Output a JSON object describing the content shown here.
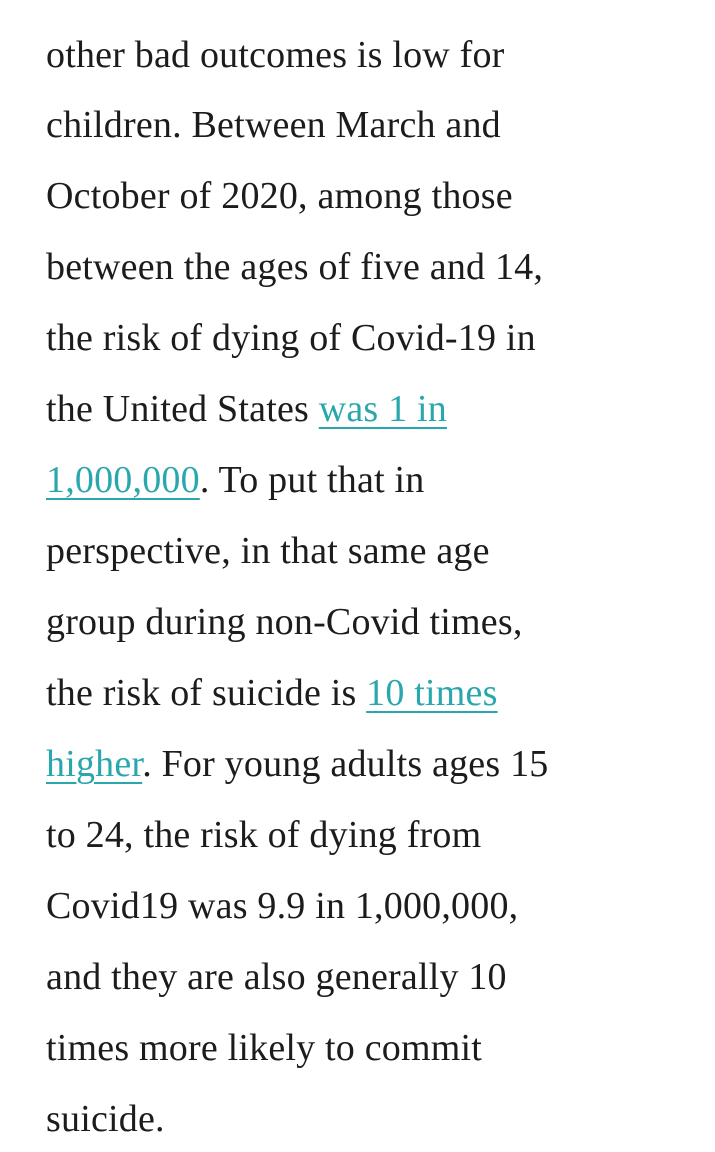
{
  "article": {
    "clipped_fragment": ",",
    "lines": [
      {
        "text": "other bad outcomes is low for"
      },
      {
        "text": "children. Between March and"
      },
      {
        "text": "October of 2020, among those"
      },
      {
        "text": "between the ages of five and 14,"
      },
      {
        "text": "the risk of dying of Covid-19 in"
      },
      {
        "before": "the United States ",
        "link": "was 1 in",
        "after": ""
      },
      {
        "before": "",
        "link": "1,000,000",
        "after": ". To put that in"
      },
      {
        "text": "perspective, in that same age"
      },
      {
        "text": "group during non-Covid times,"
      },
      {
        "before": "the risk of suicide is ",
        "link": "10 times",
        "after": ""
      },
      {
        "before": "",
        "link": "higher",
        "after": ". For young adults ages 15"
      },
      {
        "text": "to 24, the risk of dying from"
      },
      {
        "text": "Covid19 was 9.9 in 1,000,000,"
      },
      {
        "text": "and they are also generally 10"
      },
      {
        "text": "times more likely to commit"
      },
      {
        "text": "suicide."
      }
    ]
  },
  "colors": {
    "text": "#1c1c1c",
    "link": "#2aa7ad",
    "background": "#ffffff"
  }
}
